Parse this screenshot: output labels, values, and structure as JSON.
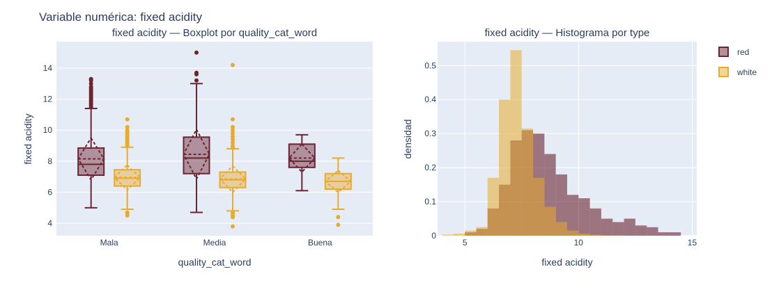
{
  "figure": {
    "title": "Variable numérica: fixed acidity"
  },
  "colors": {
    "red": "#6b2430",
    "white": "#e8ab2e",
    "plot_bg": "#e5ecf6",
    "text": "#2a3f5f"
  },
  "chart_data": [
    {
      "type": "box",
      "title": "fixed acidity — Boxplot por quality_cat_word",
      "xlabel": "quality_cat_word",
      "ylabel": "fixed acidity",
      "categories": [
        "Mala",
        "Media",
        "Buena"
      ],
      "ylim": [
        3.2,
        15.7
      ],
      "yticks": [
        4,
        6,
        8,
        10,
        12,
        14
      ],
      "grid": true,
      "boxes": [
        {
          "category": "Mala",
          "series": "red",
          "min": 5.0,
          "q1": 7.1,
          "median": 7.8,
          "q3": 8.85,
          "max": 11.4,
          "mean": 8.15,
          "sd": 1.35,
          "outliers": [
            11.5,
            11.6,
            11.7,
            11.8,
            11.9,
            12.0,
            12.1,
            12.2,
            12.3,
            12.4,
            12.5,
            12.6,
            12.7,
            12.8,
            13.0,
            13.2,
            13.3
          ]
        },
        {
          "category": "Mala",
          "series": "white",
          "min": 4.9,
          "q1": 6.4,
          "median": 6.9,
          "q3": 7.45,
          "max": 8.9,
          "mean": 6.95,
          "sd": 0.8,
          "outliers": [
            4.5,
            4.6,
            4.7,
            9.0,
            9.1,
            9.2,
            9.3,
            9.4,
            9.5,
            9.6,
            9.7,
            9.8,
            9.9,
            10.0,
            10.2,
            10.7
          ]
        },
        {
          "category": "Media",
          "series": "red",
          "min": 4.7,
          "q1": 7.2,
          "median": 8.2,
          "q3": 9.55,
          "max": 13.0,
          "mean": 8.45,
          "sd": 1.6,
          "outliers": [
            13.2,
            13.6,
            13.7,
            15.0
          ]
        },
        {
          "category": "Media",
          "series": "white",
          "min": 4.8,
          "q1": 6.3,
          "median": 6.8,
          "q3": 7.3,
          "max": 8.8,
          "mean": 6.85,
          "sd": 0.85,
          "outliers": [
            3.8,
            4.4,
            4.5,
            4.6,
            4.7,
            8.9,
            9.0,
            9.2,
            9.4,
            9.6,
            9.8,
            10.0,
            10.2,
            10.7,
            14.2
          ]
        },
        {
          "category": "Buena",
          "series": "red",
          "min": 6.1,
          "q1": 7.6,
          "median": 8.0,
          "q3": 9.1,
          "max": 9.7,
          "mean": 8.2,
          "sd": 0.9,
          "outliers": []
        },
        {
          "category": "Buena",
          "series": "white",
          "min": 4.9,
          "q1": 6.2,
          "median": 6.7,
          "q3": 7.2,
          "max": 8.2,
          "mean": 6.7,
          "sd": 0.7,
          "outliers": [
            3.9,
            4.4
          ]
        }
      ]
    },
    {
      "type": "histogram",
      "title": "fixed acidity — Histograma por type",
      "xlabel": "fixed acidity",
      "ylabel": "densidad",
      "xlim": [
        3.8,
        15.2
      ],
      "ylim": [
        0,
        0.57
      ],
      "xticks": [
        5,
        10,
        15
      ],
      "yticks": [
        0,
        0.1,
        0.2,
        0.3,
        0.4,
        0.5
      ],
      "ytick_labels": [
        "0",
        "0.1",
        "0.2",
        "0.3",
        "0.4",
        "0.5"
      ],
      "grid": true,
      "legend": {
        "position": "top-right",
        "entries": [
          "red",
          "white"
        ]
      },
      "series": [
        {
          "name": "red",
          "bin_start": 4.5,
          "bin_width": 0.5,
          "values": [
            0.0,
            0.01,
            0.02,
            0.08,
            0.15,
            0.28,
            0.31,
            0.3,
            0.24,
            0.18,
            0.12,
            0.11,
            0.08,
            0.05,
            0.04,
            0.05,
            0.03,
            0.025,
            0.01,
            0.01,
            0.0,
            0.0,
            0.0,
            0.0,
            0.0,
            0.0,
            0.0,
            0.0,
            0.0,
            0.0,
            0.003
          ]
        },
        {
          "name": "white",
          "bin_start": 4.0,
          "bin_width": 0.5,
          "values": [
            0.003,
            0.006,
            0.015,
            0.025,
            0.17,
            0.4,
            0.545,
            0.315,
            0.17,
            0.085,
            0.04,
            0.015,
            0.006,
            0.003,
            0.001,
            0.001
          ]
        }
      ]
    }
  ]
}
